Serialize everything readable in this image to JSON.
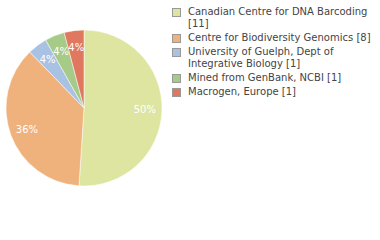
{
  "chart_data": {
    "type": "pie",
    "categories": [
      "Canadian Centre for DNA Barcoding [11]",
      "Centre for Biodiversity Genomics [8]",
      "University of Guelph, Dept of Integrative Biology [1]",
      "Mined from GenBank, NCBI [1]",
      "Macrogen, Europe [1]"
    ],
    "values": [
      50,
      36,
      4,
      4,
      4
    ],
    "value_labels": [
      "50%",
      "36%",
      "4%",
      "4%",
      "4%"
    ],
    "colors": [
      "#dde5a0",
      "#f0b27c",
      "#a9c1e2",
      "#a6cb88",
      "#e0785f"
    ],
    "data_labels": true,
    "legend": "right"
  }
}
